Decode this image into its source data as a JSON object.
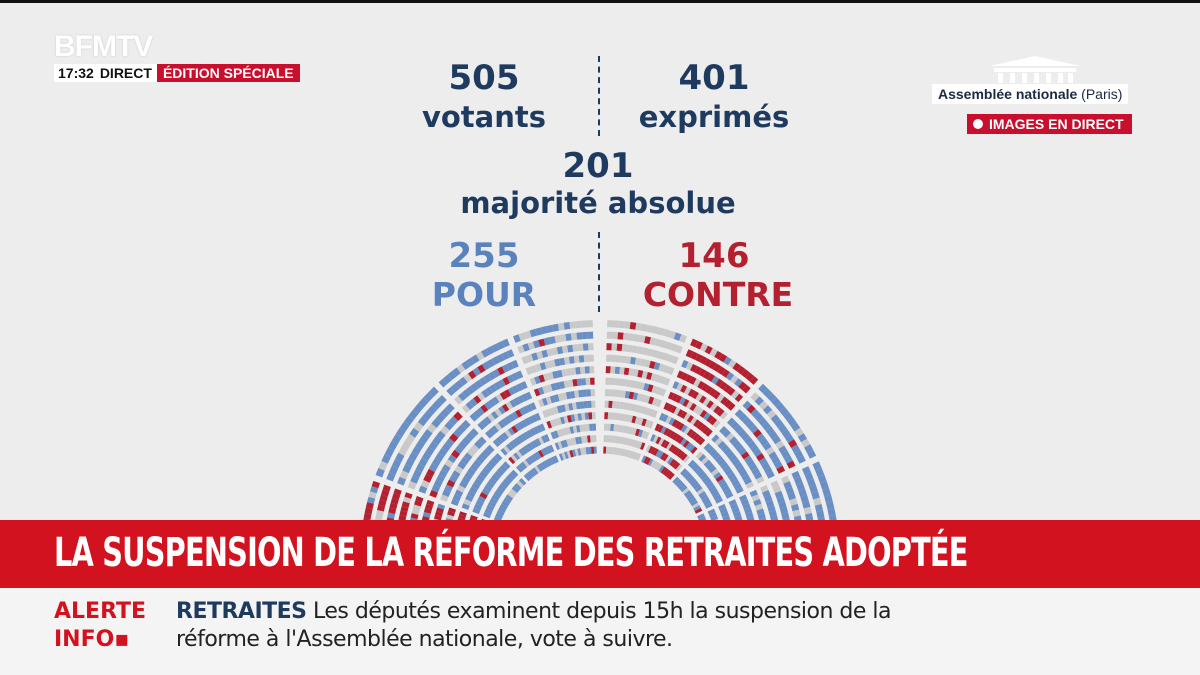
{
  "channel": {
    "logo": "BFMTV",
    "time": "17:32",
    "direct": "DIRECT",
    "edition": "ÉDITION SPÉCIALE"
  },
  "location": {
    "name": "Assemblée nationale",
    "city": "(Paris)",
    "live_label": "IMAGES EN DIRECT"
  },
  "vote": {
    "votants": "505",
    "votants_label": "votants",
    "exprimes": "401",
    "exprimes_label": "exprimés",
    "majorite": "201",
    "majorite_label": "majorité absolue",
    "pour": "255",
    "pour_label": "POUR",
    "contre": "146",
    "contre_label": "CONTRE"
  },
  "colors": {
    "pour": "#6a8fc4",
    "contre": "#b3202f",
    "abstention": "#c9c9c9",
    "brand_red": "#d2121f",
    "navy": "#1f3a5f"
  },
  "banner": {
    "headline": "LA SUSPENSION DE LA RÉFORME DES RETRAITES ADOPTÉE"
  },
  "ticker": {
    "alert_line1": "ALERTE",
    "alert_line2": "INFO",
    "topic": "RETRAITES",
    "text": "Les députés examinent depuis 15h la suspension de la réforme à l'Assemblée nationale, vote à suivre."
  }
}
